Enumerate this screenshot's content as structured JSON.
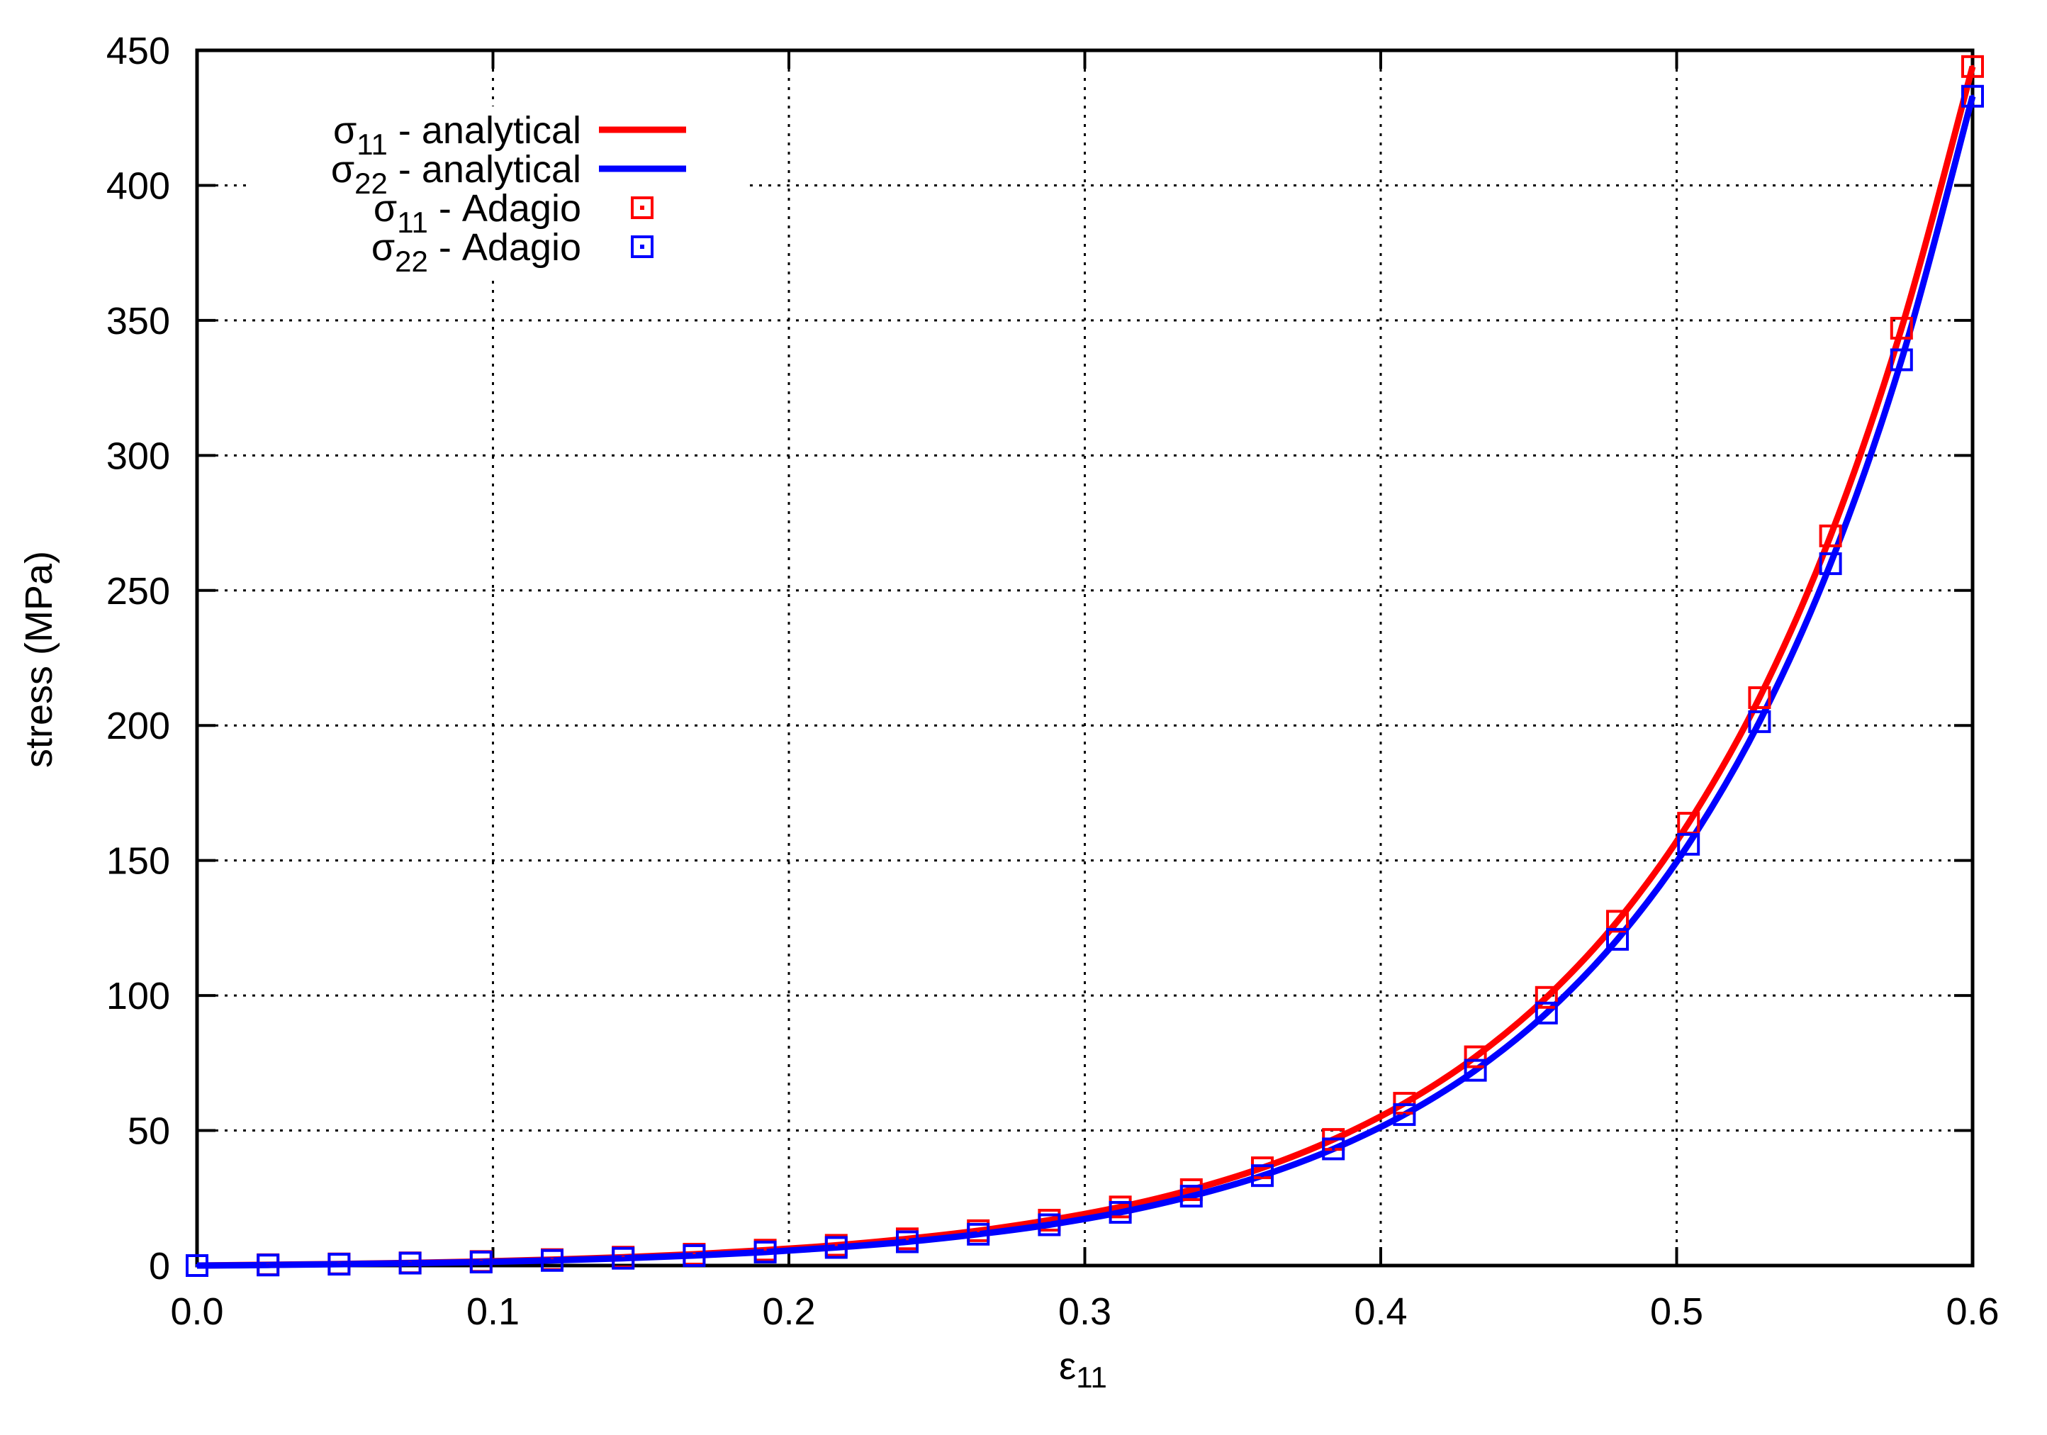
{
  "figure": {
    "background": "#ffffff",
    "axis_color": "#000000",
    "ylabel": "stress (MPa)",
    "xlabel_base": "ε",
    "xlabel_sub": "11"
  },
  "chart_data": {
    "type": "line",
    "title": "",
    "xlabel": "ε11",
    "ylabel": "stress (MPa)",
    "xlim": [
      0,
      0.6
    ],
    "ylim": [
      0,
      450
    ],
    "grid": "dotted",
    "legend_position": "top-left-inside",
    "marker_style": "open-square",
    "xticks": {
      "values": [
        0,
        0.1,
        0.2,
        0.3,
        0.4,
        0.5,
        0.6
      ],
      "labels": [
        "0.0",
        "0.1",
        "0.2",
        "0.3",
        "0.4",
        "0.5",
        "0.6"
      ]
    },
    "yticks": {
      "values": [
        0,
        50,
        100,
        150,
        200,
        250,
        300,
        350,
        400,
        450
      ],
      "labels": [
        "0",
        "50",
        "100",
        "150",
        "200",
        "250",
        "300",
        "350",
        "400",
        "450"
      ]
    },
    "x": [
      0,
      0.024,
      0.048,
      0.072,
      0.096,
      0.12,
      0.144,
      0.168,
      0.192,
      0.216,
      0.24,
      0.264,
      0.288,
      0.312,
      0.336,
      0.36,
      0.384,
      0.408,
      0.432,
      0.456,
      0.48,
      0.504,
      0.528,
      0.552,
      0.576,
      0.6
    ],
    "series": [
      {
        "name": "σ11 - analytical",
        "legend": {
          "base": "σ",
          "sub": "11",
          "rest": " - analytical"
        },
        "style": "line",
        "color": "#ff0000",
        "values": [
          0,
          0.3,
          0.6,
          1.0,
          1.5,
          2.2,
          3.1,
          4.2,
          5.7,
          7.5,
          9.9,
          12.9,
          16.8,
          21.7,
          28.1,
          36.2,
          46.7,
          60.1,
          77.3,
          99.3,
          127.5,
          163.8,
          210.3,
          270.2,
          347.1,
          444.0
        ]
      },
      {
        "name": "σ22 - analytical",
        "legend": {
          "base": "σ",
          "sub": "22",
          "rest": " - analytical"
        },
        "style": "line",
        "color": "#0000ff",
        "values": [
          0,
          0.2,
          0.5,
          0.9,
          1.3,
          1.9,
          2.7,
          3.7,
          5.0,
          6.7,
          8.8,
          11.6,
          15.1,
          19.7,
          25.7,
          33.3,
          43.2,
          55.9,
          72.3,
          93.5,
          120.8,
          156.0,
          201.4,
          259.9,
          335.4,
          433.0
        ]
      },
      {
        "name": "σ11 - Adagio",
        "legend": {
          "base": "σ",
          "sub": "11",
          "rest": " - Adagio"
        },
        "style": "scatter",
        "color": "#ff0000",
        "values": [
          0,
          0.3,
          0.6,
          1.0,
          1.5,
          2.2,
          3.1,
          4.2,
          5.7,
          7.5,
          9.9,
          12.9,
          16.8,
          21.7,
          28.1,
          36.2,
          46.7,
          60.1,
          77.3,
          99.3,
          127.5,
          163.8,
          210.3,
          270.2,
          347.1,
          444.0
        ]
      },
      {
        "name": "σ22 - Adagio",
        "legend": {
          "base": "σ",
          "sub": "22",
          "rest": " - Adagio"
        },
        "style": "scatter",
        "color": "#0000ff",
        "values": [
          0,
          0.2,
          0.5,
          0.9,
          1.3,
          1.9,
          2.7,
          3.7,
          5.0,
          6.7,
          8.8,
          11.6,
          15.1,
          19.7,
          25.7,
          33.3,
          43.2,
          55.9,
          72.3,
          93.5,
          120.8,
          156.0,
          201.4,
          259.9,
          335.4,
          433.0
        ]
      }
    ]
  }
}
